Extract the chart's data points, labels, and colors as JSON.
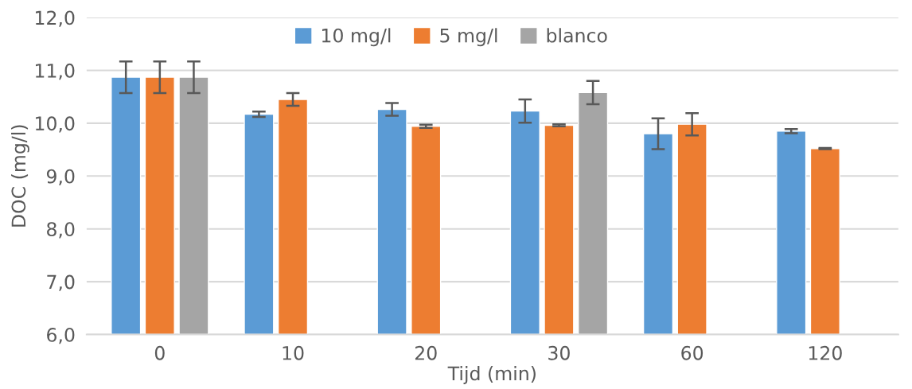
{
  "chart_data": {
    "type": "bar",
    "xlabel": "Tijd (min)",
    "ylabel": "DOC (mg/l)",
    "categories": [
      "0",
      "10",
      "20",
      "30",
      "60",
      "120"
    ],
    "series": [
      {
        "name": "10 mg/l",
        "color": "#5b9bd5",
        "values": [
          10.87,
          10.17,
          10.26,
          10.23,
          9.8,
          9.85
        ],
        "errors": [
          0.3,
          0.05,
          0.12,
          0.22,
          0.29,
          0.04
        ]
      },
      {
        "name": "5 mg/l",
        "color": "#ed7d31",
        "values": [
          10.87,
          10.45,
          9.94,
          9.96,
          9.98,
          9.52
        ],
        "errors": [
          0.3,
          0.12,
          0.03,
          0.02,
          0.21,
          0.01
        ]
      },
      {
        "name": "blanco",
        "color": "#a5a5a5",
        "values": [
          10.87,
          null,
          null,
          10.58,
          null,
          null
        ],
        "errors": [
          0.3,
          null,
          null,
          0.22,
          null,
          null
        ]
      }
    ],
    "ylim": [
      6,
      12
    ],
    "yticks": [
      {
        "value": 6,
        "label": "6,0"
      },
      {
        "value": 7,
        "label": "7,0"
      },
      {
        "value": 8,
        "label": "8,0"
      },
      {
        "value": 9,
        "label": "9,0"
      },
      {
        "value": 10,
        "label": "10,0"
      },
      {
        "value": 11,
        "label": "11,0"
      },
      {
        "value": 12,
        "label": "12,0"
      }
    ],
    "grid": "y",
    "legend": "top"
  }
}
